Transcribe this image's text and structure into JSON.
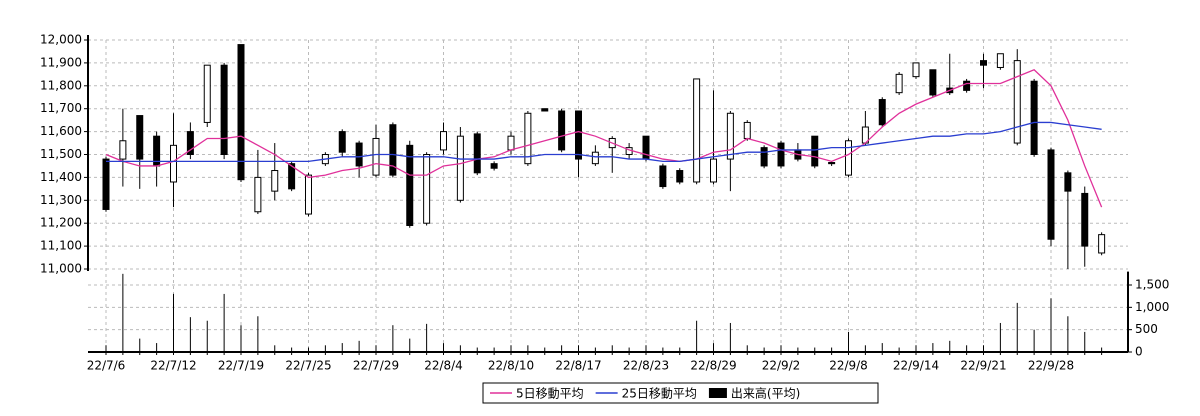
{
  "chart_data": {
    "type": "candlestick",
    "categories": [
      "22/7/6",
      null,
      null,
      null,
      "22/7/12",
      null,
      null,
      null,
      "22/7/19",
      null,
      null,
      null,
      "22/7/25",
      null,
      null,
      null,
      "22/7/29",
      null,
      null,
      null,
      "22/8/4",
      null,
      null,
      null,
      "22/8/10",
      null,
      null,
      null,
      "22/8/17",
      null,
      null,
      null,
      "22/8/23",
      null,
      null,
      null,
      "22/8/29",
      null,
      null,
      null,
      "22/9/2",
      null,
      null,
      null,
      "22/9/8",
      null,
      null,
      null,
      "22/9/14",
      null,
      null,
      null,
      "22/9/21",
      null,
      null,
      null,
      "22/9/28",
      null,
      null,
      null
    ],
    "open": [
      11480,
      11480,
      11670,
      11580,
      11380,
      11600,
      11640,
      11890,
      11980,
      11250,
      11340,
      11460,
      11240,
      11460,
      11600,
      11550,
      11410,
      11630,
      11540,
      11200,
      11520,
      11300,
      11590,
      11460,
      11520,
      11460,
      11700,
      11690,
      11690,
      11460,
      11530,
      11500,
      11580,
      11450,
      11430,
      11380,
      11380,
      11480,
      11570,
      11530,
      11550,
      11520,
      11580,
      11465,
      11410,
      11550,
      11740,
      11770,
      11840,
      11870,
      11790,
      11820,
      11910,
      11880,
      11550,
      11820,
      11520,
      11420,
      11330,
      11070
    ],
    "high": [
      11490,
      11700,
      11670,
      11600,
      11680,
      11640,
      11890,
      11900,
      11980,
      11520,
      11550,
      11470,
      11420,
      11510,
      11610,
      11560,
      11630,
      11640,
      11560,
      11510,
      11640,
      11620,
      11600,
      11470,
      11600,
      11690,
      11700,
      11700,
      11690,
      11540,
      11580,
      11550,
      11580,
      11460,
      11440,
      11830,
      11780,
      11690,
      11650,
      11540,
      11560,
      11550,
      11580,
      11470,
      11570,
      11690,
      11750,
      11860,
      11900,
      11870,
      11940,
      11830,
      11940,
      11940,
      11960,
      11830,
      11530,
      11430,
      11360,
      11160
    ],
    "low": [
      11250,
      11360,
      11350,
      11360,
      11270,
      11480,
      11620,
      11480,
      11380,
      11240,
      11300,
      11340,
      11230,
      11450,
      11490,
      11400,
      11400,
      11400,
      11180,
      11190,
      11500,
      11290,
      11410,
      11430,
      11500,
      11450,
      11690,
      11510,
      11400,
      11450,
      11420,
      11480,
      11470,
      11350,
      11370,
      11370,
      11370,
      11340,
      11560,
      11440,
      11440,
      11470,
      11440,
      11450,
      11400,
      11540,
      11620,
      11760,
      11830,
      11750,
      11760,
      11770,
      11790,
      11870,
      11540,
      11490,
      11100,
      11000,
      11010,
      11060
    ],
    "close": [
      11260,
      11560,
      11480,
      11450,
      11540,
      11500,
      11890,
      11500,
      11390,
      11400,
      11430,
      11350,
      11410,
      11500,
      11510,
      11450,
      11570,
      11410,
      11190,
      11500,
      11600,
      11580,
      11420,
      11440,
      11580,
      11680,
      11690,
      11520,
      11480,
      11510,
      11570,
      11530,
      11480,
      11360,
      11380,
      11830,
      11480,
      11680,
      11640,
      11450,
      11450,
      11480,
      11450,
      11460,
      11560,
      11620,
      11630,
      11850,
      11900,
      11760,
      11770,
      11780,
      11890,
      11940,
      11910,
      11500,
      11130,
      11340,
      11100,
      11150
    ],
    "up_color": "#ffffff",
    "down_color": "#000000",
    "ylim": [
      11000,
      12000
    ],
    "yticks": [
      {
        "value": 11000,
        "label": "11,000"
      },
      {
        "value": 11100,
        "label": "11,100"
      },
      {
        "value": 11200,
        "label": "11,200"
      },
      {
        "value": 11300,
        "label": "11,300"
      },
      {
        "value": 11400,
        "label": "11,400"
      },
      {
        "value": 11500,
        "label": "11,500"
      },
      {
        "value": 11600,
        "label": "11,600"
      },
      {
        "value": 11700,
        "label": "11,700"
      },
      {
        "value": 11800,
        "label": "11,800"
      },
      {
        "value": 11900,
        "label": "11,900"
      },
      {
        "value": 12000,
        "label": "12,000"
      }
    ],
    "series": [
      {
        "name": "5日移動平均",
        "color": "#e0309a",
        "values": [
          11500,
          11470,
          11450,
          11450,
          11470,
          11520,
          11570,
          11570,
          11580,
          11540,
          11500,
          11450,
          11400,
          11410,
          11430,
          11440,
          11460,
          11450,
          11410,
          11410,
          11450,
          11460,
          11480,
          11490,
          11520,
          11540,
          11560,
          11580,
          11600,
          11580,
          11550,
          11520,
          11500,
          11480,
          11470,
          11480,
          11510,
          11520,
          11570,
          11550,
          11520,
          11500,
          11490,
          11470,
          11500,
          11550,
          11620,
          11680,
          11720,
          11750,
          11780,
          11810,
          11810,
          11810,
          11840,
          11870,
          11800,
          11650,
          11450,
          11270
        ]
      },
      {
        "name": "25日移動平均",
        "color": "#2a3ed0",
        "values": [
          11470,
          11470,
          11470,
          11470,
          11470,
          11470,
          11470,
          11470,
          11470,
          11470,
          11470,
          11470,
          11470,
          11480,
          11490,
          11490,
          11500,
          11500,
          11490,
          11490,
          11490,
          11480,
          11480,
          11480,
          11490,
          11490,
          11500,
          11500,
          11500,
          11490,
          11490,
          11480,
          11480,
          11470,
          11470,
          11480,
          11490,
          11500,
          11510,
          11510,
          11520,
          11520,
          11520,
          11530,
          11530,
          11540,
          11550,
          11560,
          11570,
          11580,
          11580,
          11590,
          11590,
          11600,
          11620,
          11640,
          11640,
          11630,
          11620,
          11610
        ]
      }
    ],
    "volume": {
      "name": "出来高(平均)",
      "color": "#000000",
      "values": [
        150,
        1750,
        300,
        200,
        1300,
        780,
        700,
        1300,
        600,
        800,
        150,
        100,
        100,
        150,
        200,
        250,
        150,
        600,
        300,
        630,
        200,
        150,
        100,
        100,
        150,
        150,
        100,
        150,
        150,
        100,
        150,
        100,
        150,
        100,
        100,
        700,
        200,
        650,
        150,
        100,
        150,
        100,
        100,
        100,
        450,
        150,
        200,
        100,
        150,
        200,
        250,
        150,
        150,
        650,
        1100,
        500,
        1200,
        800,
        450,
        100
      ],
      "ylim": [
        0,
        1800
      ],
      "yticks": [
        0,
        500,
        {
          "value": 1000,
          "label": "1,000"
        },
        {
          "value": 1500,
          "label": "1,500"
        }
      ]
    },
    "grid": true
  }
}
